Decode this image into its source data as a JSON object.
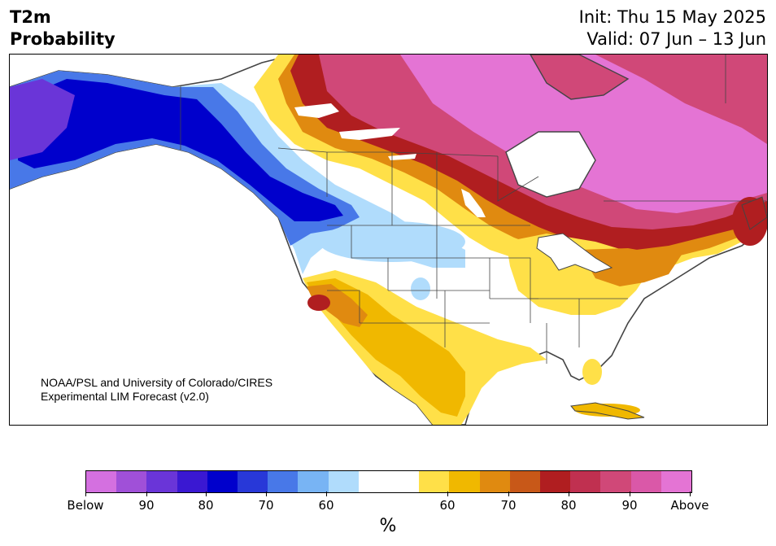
{
  "header": {
    "title_line1": "T2m",
    "title_line2": "Probability",
    "init": "Init: Thu 15 May 2025",
    "valid": "Valid: 07 Jun – 13 Jun"
  },
  "map": {
    "credit_line1": "NOAA/PSL and University of Colorado/CIRES",
    "credit_line2": "Experimental LIM Forecast (v2.0)",
    "region": "North America"
  },
  "legend": {
    "unit": "%",
    "colors": [
      "#d470e0",
      "#a050d8",
      "#6a35d8",
      "#3a18d2",
      "#0000cc",
      "#2838d8",
      "#4878e8",
      "#78b4f4",
      "#b0dcfc",
      "#ffffff",
      "#ffffff",
      "#ffe048",
      "#f0b800",
      "#e08a10",
      "#c85818",
      "#b01e20",
      "#c03050",
      "#d04878",
      "#da58a8",
      "#e474d4"
    ],
    "tick_labels": [
      "Below",
      "90",
      "80",
      "70",
      "60",
      "60",
      "70",
      "80",
      "90",
      "Above"
    ]
  }
}
